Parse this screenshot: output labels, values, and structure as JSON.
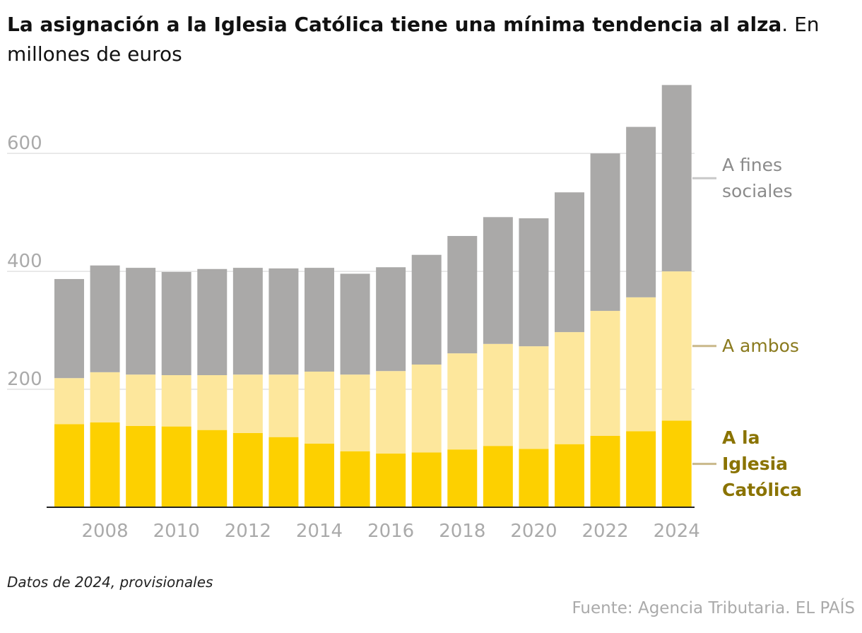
{
  "chart_data": {
    "type": "stacked-bar",
    "title": "La asignación a la Iglesia Católica tiene una mínima tendencia al alza",
    "subtitle": ". En millones de euros",
    "x": [
      2007,
      2008,
      2009,
      2010,
      2011,
      2012,
      2013,
      2014,
      2015,
      2016,
      2017,
      2018,
      2019,
      2020,
      2021,
      2022,
      2023,
      2024
    ],
    "xlim": [
      2006.5,
      2024.5
    ],
    "xticks": [
      2008,
      2010,
      2012,
      2014,
      2016,
      2018,
      2020,
      2022,
      2024
    ],
    "ylim": [
      0,
      720
    ],
    "yticks": [
      200,
      400,
      600
    ],
    "grid": true,
    "series": [
      {
        "name": "A la Iglesia Católica",
        "color": "#fdd000",
        "values": [
          141,
          144,
          138,
          137,
          131,
          126,
          119,
          108,
          95,
          91,
          93,
          98,
          104,
          99,
          107,
          121,
          129,
          147
        ]
      },
      {
        "name": "A ambos",
        "color": "#fde79c",
        "values": [
          78,
          85,
          87,
          87,
          93,
          99,
          106,
          122,
          130,
          140,
          149,
          163,
          173,
          174,
          190,
          212,
          227,
          253
        ]
      },
      {
        "name": "A fines sociales",
        "color": "#aaa9a8",
        "values": [
          168,
          181,
          181,
          175,
          180,
          181,
          180,
          176,
          171,
          176,
          186,
          199,
          215,
          217,
          237,
          267,
          289,
          316
        ]
      }
    ],
    "note": "Datos de 2024, provisionales",
    "source": "Fuente: Agencia Tributaria. EL PAÍS"
  }
}
